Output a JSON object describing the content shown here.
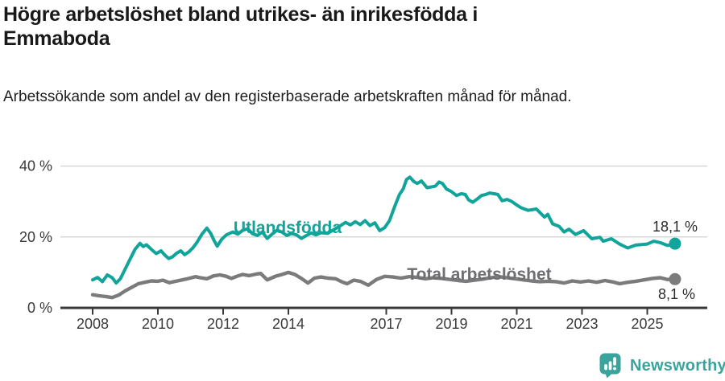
{
  "chart_data": {
    "type": "line",
    "title": "Högre arbetslöshet bland utrikes- än inrikesfödda i Emmaboda",
    "subtitle": "Arbetssökande som andel av den registerbaserade arbetskraften månad för månad.",
    "unit": "percent of registered labour force",
    "x_axis": {
      "tick_labels": [
        "2008",
        "2010",
        "2012",
        "2014",
        "2017",
        "2019",
        "2021",
        "2023",
        "2025"
      ],
      "tick_years": [
        2008,
        2010,
        2012,
        2014,
        2017,
        2019,
        2021,
        2023,
        2025
      ],
      "range": [
        2008,
        2025.85
      ]
    },
    "y_axis": {
      "tick_labels": [
        "0 %",
        "20 %",
        "40 %"
      ],
      "tick_values": [
        0,
        20,
        40
      ],
      "range": [
        0,
        42
      ],
      "grid": true
    },
    "legend_position": "inline-labels-on-lines",
    "series": [
      {
        "name": "Utlandsfödda",
        "color": "#10a49b",
        "end_label": "18,1 %",
        "end_value": 18.1,
        "points": [
          [
            2008.0,
            7.9
          ],
          [
            2008.15,
            8.6
          ],
          [
            2008.3,
            7.4
          ],
          [
            2008.45,
            9.3
          ],
          [
            2008.6,
            8.5
          ],
          [
            2008.72,
            7.0
          ],
          [
            2008.85,
            8.2
          ],
          [
            2009.0,
            11.0
          ],
          [
            2009.15,
            13.8
          ],
          [
            2009.3,
            16.5
          ],
          [
            2009.45,
            18.2
          ],
          [
            2009.55,
            17.3
          ],
          [
            2009.65,
            17.8
          ],
          [
            2009.8,
            16.5
          ],
          [
            2009.95,
            15.3
          ],
          [
            2010.1,
            16.1
          ],
          [
            2010.2,
            15.0
          ],
          [
            2010.33,
            13.9
          ],
          [
            2010.45,
            14.4
          ],
          [
            2010.57,
            15.4
          ],
          [
            2010.7,
            16.1
          ],
          [
            2010.82,
            15.0
          ],
          [
            2010.95,
            15.8
          ],
          [
            2011.07,
            16.9
          ],
          [
            2011.2,
            18.5
          ],
          [
            2011.35,
            20.8
          ],
          [
            2011.5,
            22.5
          ],
          [
            2011.62,
            21.0
          ],
          [
            2011.72,
            19.0
          ],
          [
            2011.82,
            17.4
          ],
          [
            2011.95,
            19.3
          ],
          [
            2012.1,
            20.6
          ],
          [
            2012.3,
            21.4
          ],
          [
            2012.45,
            20.8
          ],
          [
            2012.6,
            21.9
          ],
          [
            2012.75,
            22.3
          ],
          [
            2012.9,
            20.9
          ],
          [
            2013.05,
            20.4
          ],
          [
            2013.2,
            21.4
          ],
          [
            2013.35,
            19.6
          ],
          [
            2013.5,
            20.8
          ],
          [
            2013.65,
            21.9
          ],
          [
            2013.8,
            21.4
          ],
          [
            2013.95,
            20.4
          ],
          [
            2014.1,
            21.0
          ],
          [
            2014.25,
            20.6
          ],
          [
            2014.4,
            19.6
          ],
          [
            2014.55,
            20.4
          ],
          [
            2014.7,
            21.1
          ],
          [
            2014.85,
            20.6
          ],
          [
            2015.0,
            21.2
          ],
          [
            2015.2,
            21.0
          ],
          [
            2015.4,
            22.1
          ],
          [
            2015.6,
            23.2
          ],
          [
            2015.75,
            24.1
          ],
          [
            2015.9,
            23.4
          ],
          [
            2016.05,
            24.3
          ],
          [
            2016.2,
            23.5
          ],
          [
            2016.35,
            24.6
          ],
          [
            2016.5,
            23.2
          ],
          [
            2016.65,
            24.0
          ],
          [
            2016.8,
            21.8
          ],
          [
            2016.95,
            22.6
          ],
          [
            2017.1,
            24.6
          ],
          [
            2017.25,
            28.4
          ],
          [
            2017.4,
            31.9
          ],
          [
            2017.52,
            33.6
          ],
          [
            2017.62,
            36.2
          ],
          [
            2017.72,
            36.9
          ],
          [
            2017.85,
            35.6
          ],
          [
            2017.95,
            35.1
          ],
          [
            2018.08,
            35.8
          ],
          [
            2018.25,
            33.9
          ],
          [
            2018.5,
            34.3
          ],
          [
            2018.62,
            35.5
          ],
          [
            2018.72,
            35.1
          ],
          [
            2018.85,
            33.5
          ],
          [
            2019.0,
            32.8
          ],
          [
            2019.15,
            31.7
          ],
          [
            2019.3,
            32.2
          ],
          [
            2019.42,
            32.0
          ],
          [
            2019.52,
            30.5
          ],
          [
            2019.65,
            29.8
          ],
          [
            2019.8,
            30.8
          ],
          [
            2019.92,
            31.7
          ],
          [
            2020.05,
            32.0
          ],
          [
            2020.17,
            32.4
          ],
          [
            2020.3,
            32.2
          ],
          [
            2020.42,
            32.0
          ],
          [
            2020.55,
            30.2
          ],
          [
            2020.7,
            30.6
          ],
          [
            2020.85,
            30.0
          ],
          [
            2021.0,
            29.0
          ],
          [
            2021.12,
            28.3
          ],
          [
            2021.35,
            27.5
          ],
          [
            2021.6,
            27.9
          ],
          [
            2021.85,
            25.6
          ],
          [
            2021.95,
            26.4
          ],
          [
            2022.1,
            23.7
          ],
          [
            2022.3,
            23.0
          ],
          [
            2022.45,
            21.4
          ],
          [
            2022.6,
            22.2
          ],
          [
            2022.8,
            20.7
          ],
          [
            2023.05,
            21.8
          ],
          [
            2023.3,
            19.5
          ],
          [
            2023.55,
            19.9
          ],
          [
            2023.65,
            18.8
          ],
          [
            2023.9,
            19.5
          ],
          [
            2024.15,
            18.0
          ],
          [
            2024.4,
            16.9
          ],
          [
            2024.65,
            17.7
          ],
          [
            2025.0,
            18.0
          ],
          [
            2025.2,
            18.8
          ],
          [
            2025.4,
            18.4
          ],
          [
            2025.62,
            17.6
          ],
          [
            2025.85,
            18.1
          ]
        ]
      },
      {
        "name": "Total arbetslöshet",
        "color": "#7b7b7b",
        "end_label": "8,1 %",
        "end_value": 8.1,
        "points": [
          [
            2008.0,
            3.7
          ],
          [
            2008.2,
            3.4
          ],
          [
            2008.4,
            3.2
          ],
          [
            2008.6,
            2.9
          ],
          [
            2008.8,
            3.6
          ],
          [
            2009.0,
            4.8
          ],
          [
            2009.2,
            5.8
          ],
          [
            2009.4,
            6.8
          ],
          [
            2009.6,
            7.2
          ],
          [
            2009.8,
            7.6
          ],
          [
            2010.0,
            7.5
          ],
          [
            2010.15,
            7.8
          ],
          [
            2010.35,
            7.1
          ],
          [
            2010.55,
            7.5
          ],
          [
            2010.75,
            7.9
          ],
          [
            2010.95,
            8.3
          ],
          [
            2011.15,
            8.8
          ],
          [
            2011.3,
            8.5
          ],
          [
            2011.5,
            8.2
          ],
          [
            2011.7,
            9.0
          ],
          [
            2011.9,
            9.3
          ],
          [
            2012.1,
            8.9
          ],
          [
            2012.25,
            8.3
          ],
          [
            2012.45,
            9.0
          ],
          [
            2012.6,
            9.4
          ],
          [
            2012.8,
            9.1
          ],
          [
            2013.0,
            9.5
          ],
          [
            2013.15,
            9.7
          ],
          [
            2013.35,
            7.9
          ],
          [
            2013.6,
            8.9
          ],
          [
            2013.8,
            9.4
          ],
          [
            2014.0,
            10.0
          ],
          [
            2014.2,
            9.4
          ],
          [
            2014.4,
            8.3
          ],
          [
            2014.6,
            7.0
          ],
          [
            2014.8,
            8.4
          ],
          [
            2015.0,
            8.7
          ],
          [
            2015.2,
            8.4
          ],
          [
            2015.45,
            8.2
          ],
          [
            2015.65,
            7.3
          ],
          [
            2015.8,
            6.8
          ],
          [
            2016.0,
            7.8
          ],
          [
            2016.2,
            7.5
          ],
          [
            2016.45,
            6.4
          ],
          [
            2016.7,
            8.0
          ],
          [
            2016.95,
            8.9
          ],
          [
            2017.2,
            8.7
          ],
          [
            2017.45,
            8.4
          ],
          [
            2017.7,
            8.8
          ],
          [
            2017.95,
            8.6
          ],
          [
            2018.2,
            8.2
          ],
          [
            2018.45,
            8.5
          ],
          [
            2018.7,
            8.3
          ],
          [
            2018.95,
            8.0
          ],
          [
            2019.2,
            7.7
          ],
          [
            2019.45,
            7.5
          ],
          [
            2019.7,
            7.8
          ],
          [
            2019.95,
            8.1
          ],
          [
            2020.2,
            8.5
          ],
          [
            2020.45,
            8.8
          ],
          [
            2020.7,
            8.5
          ],
          [
            2020.95,
            8.2
          ],
          [
            2021.2,
            7.9
          ],
          [
            2021.45,
            7.6
          ],
          [
            2021.7,
            7.4
          ],
          [
            2021.95,
            7.5
          ],
          [
            2022.2,
            7.4
          ],
          [
            2022.45,
            7.0
          ],
          [
            2022.7,
            7.6
          ],
          [
            2022.95,
            7.3
          ],
          [
            2023.2,
            7.6
          ],
          [
            2023.45,
            7.2
          ],
          [
            2023.7,
            7.7
          ],
          [
            2023.95,
            7.3
          ],
          [
            2024.15,
            6.8
          ],
          [
            2024.4,
            7.2
          ],
          [
            2024.65,
            7.5
          ],
          [
            2024.9,
            7.9
          ],
          [
            2025.15,
            8.3
          ],
          [
            2025.4,
            8.5
          ],
          [
            2025.62,
            8.0
          ],
          [
            2025.85,
            8.1
          ]
        ]
      }
    ],
    "colors": {
      "grid": "#d8d8d8",
      "axis": "#3a3a3a",
      "text": "#191919"
    }
  },
  "footer": {
    "brand": "Newsworthy",
    "brand_color": "#3aa39c"
  }
}
